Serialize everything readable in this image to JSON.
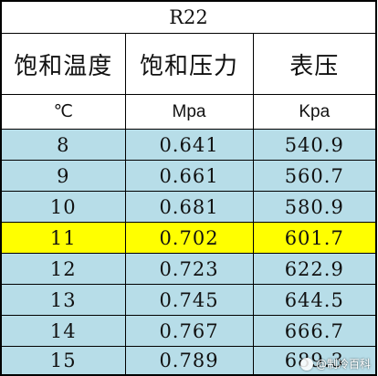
{
  "table": {
    "title": "R22",
    "headers": [
      "饱和温度",
      "饱和压力",
      "表压"
    ],
    "units": [
      "℃",
      "Mpa",
      "Kpa"
    ],
    "rows": [
      {
        "temp": "8",
        "pressure": "0.641",
        "gauge": "540.9",
        "highlight": false
      },
      {
        "temp": "9",
        "pressure": "0.661",
        "gauge": "560.7",
        "highlight": false
      },
      {
        "temp": "10",
        "pressure": "0.681",
        "gauge": "580.9",
        "highlight": false
      },
      {
        "temp": "11",
        "pressure": "0.702",
        "gauge": "601.7",
        "highlight": true
      },
      {
        "temp": "12",
        "pressure": "0.723",
        "gauge": "622.9",
        "highlight": false
      },
      {
        "temp": "13",
        "pressure": "0.745",
        "gauge": "644.5",
        "highlight": false
      },
      {
        "temp": "14",
        "pressure": "0.767",
        "gauge": "666.7",
        "highlight": false
      },
      {
        "temp": "15",
        "pressure": "0.789",
        "gauge": "689.3",
        "highlight": false
      }
    ]
  },
  "colors": {
    "row_fill": "#b7dde8",
    "highlight_fill": "#ffff00",
    "border": "#000000"
  },
  "watermark": {
    "text": "@制冷百科"
  }
}
